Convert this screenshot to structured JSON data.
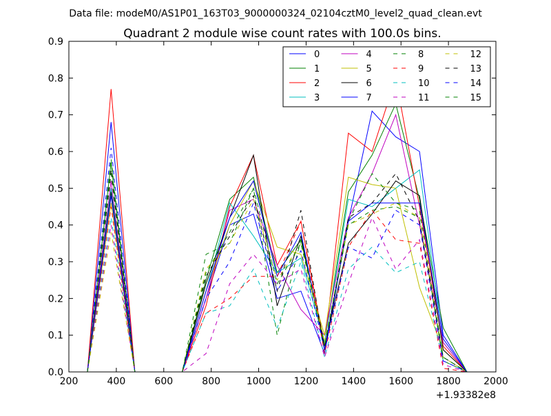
{
  "header": {
    "data_file": "Data file: modeM0/AS1P01_163T03_9000000324_02104cztM0_level2_quad_clean.evt"
  },
  "chart_data": {
    "type": "line",
    "title": "Quadrant 2 module wise count rates with 100.0s bins.",
    "xlabel": "",
    "ylabel": "",
    "x_offset_label": "+1.93382e8",
    "xlim": [
      200,
      2000
    ],
    "ylim": [
      0,
      0.9
    ],
    "xticks": [
      "200",
      "400",
      "600",
      "800",
      "1000",
      "1200",
      "1400",
      "1600",
      "1800",
      "2000"
    ],
    "yticks": [
      "0.0",
      "0.1",
      "0.2",
      "0.3",
      "0.4",
      "0.5",
      "0.6",
      "0.7",
      "0.8",
      "0.9"
    ],
    "grid": false,
    "legend": {
      "placement": "top-right",
      "columns": 4
    },
    "x": [
      278,
      378,
      478,
      578,
      678,
      778,
      878,
      978,
      1078,
      1178,
      1278,
      1378,
      1478,
      1578,
      1678,
      1778,
      1878
    ],
    "series": [
      {
        "name": "0",
        "color": "#0000ff",
        "dash": "solid",
        "values": [
          0.0,
          0.68,
          0.0,
          0.0,
          0.0,
          0.2,
          0.4,
          0.43,
          0.2,
          0.22,
          0.05,
          0.41,
          0.71,
          0.64,
          0.6,
          0.1,
          0.0
        ]
      },
      {
        "name": "1",
        "color": "#008000",
        "dash": "solid",
        "values": [
          0.0,
          0.57,
          0.0,
          0.0,
          0.0,
          0.25,
          0.47,
          0.53,
          0.27,
          0.36,
          0.08,
          0.49,
          0.59,
          0.73,
          0.47,
          0.12,
          0.0
        ]
      },
      {
        "name": "2",
        "color": "#ff0000",
        "dash": "solid",
        "values": [
          0.0,
          0.77,
          0.0,
          0.0,
          0.0,
          0.18,
          0.45,
          0.59,
          0.29,
          0.41,
          0.07,
          0.65,
          0.6,
          0.8,
          0.45,
          0.07,
          0.0
        ]
      },
      {
        "name": "3",
        "color": "#00bfbf",
        "dash": "solid",
        "values": [
          0.0,
          0.5,
          0.0,
          0.0,
          0.0,
          0.22,
          0.46,
          0.37,
          0.27,
          0.31,
          0.08,
          0.47,
          0.45,
          0.5,
          0.55,
          0.08,
          0.0
        ]
      },
      {
        "name": "4",
        "color": "#bf00bf",
        "dash": "solid",
        "values": [
          0.0,
          0.52,
          0.0,
          0.0,
          0.0,
          0.2,
          0.44,
          0.47,
          0.29,
          0.17,
          0.1,
          0.42,
          0.54,
          0.7,
          0.4,
          0.08,
          0.0
        ]
      },
      {
        "name": "5",
        "color": "#bfbf00",
        "dash": "solid",
        "values": [
          0.0,
          0.46,
          0.0,
          0.0,
          0.0,
          0.22,
          0.4,
          0.52,
          0.34,
          0.32,
          0.1,
          0.53,
          0.51,
          0.5,
          0.23,
          0.06,
          0.0
        ]
      },
      {
        "name": "6",
        "color": "#000000",
        "dash": "solid",
        "values": [
          0.0,
          0.49,
          0.0,
          0.0,
          0.0,
          0.24,
          0.42,
          0.59,
          0.18,
          0.37,
          0.07,
          0.35,
          0.43,
          0.52,
          0.48,
          0.06,
          0.0
        ]
      },
      {
        "name": "7",
        "color": "#0000ff",
        "dash": "solid",
        "values": [
          0.0,
          0.48,
          0.0,
          0.0,
          0.0,
          0.22,
          0.42,
          0.52,
          0.26,
          0.38,
          0.06,
          0.41,
          0.46,
          0.46,
          0.46,
          0.09,
          0.0
        ]
      },
      {
        "name": "8",
        "color": "#008000",
        "dash": "dashed",
        "values": [
          0.0,
          0.58,
          0.0,
          0.0,
          0.0,
          0.32,
          0.35,
          0.5,
          0.1,
          0.36,
          0.07,
          0.4,
          0.44,
          0.45,
          0.42,
          0.03,
          0.0
        ]
      },
      {
        "name": "9",
        "color": "#ff0000",
        "dash": "dashed",
        "values": [
          0.0,
          0.45,
          0.0,
          0.0,
          0.0,
          0.16,
          0.2,
          0.26,
          0.26,
          0.41,
          0.05,
          0.34,
          0.44,
          0.36,
          0.35,
          0.01,
          0.0
        ]
      },
      {
        "name": "10",
        "color": "#00bfbf",
        "dash": "dashed",
        "values": [
          0.0,
          0.42,
          0.0,
          0.0,
          0.0,
          0.16,
          0.18,
          0.28,
          0.12,
          0.3,
          0.04,
          0.28,
          0.34,
          0.27,
          0.3,
          0.03,
          0.0
        ]
      },
      {
        "name": "11",
        "color": "#bf00bf",
        "dash": "dashed",
        "values": [
          0.0,
          0.4,
          0.0,
          0.0,
          0.0,
          0.05,
          0.24,
          0.32,
          0.24,
          0.28,
          0.04,
          0.24,
          0.42,
          0.28,
          0.36,
          0.02,
          0.0
        ]
      },
      {
        "name": "12",
        "color": "#bfbf00",
        "dash": "dashed",
        "values": [
          0.0,
          0.38,
          0.0,
          0.0,
          0.0,
          0.28,
          0.35,
          0.47,
          0.25,
          0.35,
          0.08,
          0.4,
          0.43,
          0.46,
          0.42,
          0.04,
          0.0
        ]
      },
      {
        "name": "13",
        "color": "#000000",
        "dash": "dashed",
        "values": [
          0.0,
          0.55,
          0.0,
          0.0,
          0.0,
          0.26,
          0.37,
          0.48,
          0.22,
          0.44,
          0.06,
          0.42,
          0.46,
          0.54,
          0.41,
          0.04,
          0.0
        ]
      },
      {
        "name": "14",
        "color": "#0000ff",
        "dash": "dashed",
        "values": [
          0.0,
          0.61,
          0.0,
          0.0,
          0.0,
          0.2,
          0.3,
          0.46,
          0.22,
          0.33,
          0.06,
          0.34,
          0.31,
          0.44,
          0.4,
          0.03,
          0.0
        ]
      },
      {
        "name": "15",
        "color": "#008000",
        "dash": "dashed",
        "values": [
          0.0,
          0.54,
          0.0,
          0.0,
          0.0,
          0.27,
          0.38,
          0.5,
          0.24,
          0.35,
          0.07,
          0.41,
          0.54,
          0.46,
          0.44,
          0.04,
          0.0
        ]
      }
    ]
  }
}
